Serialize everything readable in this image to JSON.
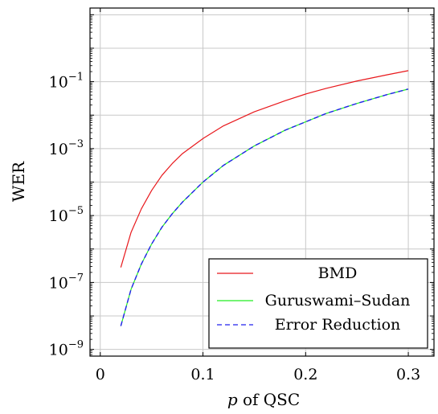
{
  "chart_data": {
    "type": "line",
    "xlabel_var": "p",
    "xlabel_rest": " of QSC",
    "ylabel": "WER",
    "xlim": [
      -0.01,
      0.325
    ],
    "ylim_log10": [
      -9.2,
      1.2
    ],
    "y_scale": "log",
    "grid": true,
    "legend_position": "bottom-right",
    "x_ticks": [
      {
        "value": 0,
        "label": "0"
      },
      {
        "value": 0.1,
        "label": "0.1"
      },
      {
        "value": 0.2,
        "label": "0.2"
      },
      {
        "value": 0.3,
        "label": "0.3"
      }
    ],
    "y_ticks": [
      {
        "exp": -1,
        "base": "10",
        "sup": "−1"
      },
      {
        "exp": -3,
        "base": "10",
        "sup": "−3"
      },
      {
        "exp": -5,
        "base": "10",
        "sup": "−5"
      },
      {
        "exp": -7,
        "base": "10",
        "sup": "−7"
      },
      {
        "exp": -9,
        "base": "10",
        "sup": "−9"
      }
    ],
    "x": [
      0.02,
      0.03,
      0.04,
      0.05,
      0.06,
      0.07,
      0.08,
      0.1,
      0.12,
      0.15,
      0.18,
      0.2,
      0.22,
      0.25,
      0.28,
      0.3
    ],
    "series": [
      {
        "name": "BMD",
        "color": "#e8181c",
        "dash": "solid",
        "log10_values": [
          -6.55,
          -5.5,
          -4.8,
          -4.25,
          -3.8,
          -3.45,
          -3.15,
          -2.7,
          -2.32,
          -1.9,
          -1.57,
          -1.37,
          -1.2,
          -0.98,
          -0.79,
          -0.67
        ]
      },
      {
        "name": "Guruswami–Sudan",
        "color": "#22ee22",
        "dash": "solid",
        "log10_values": [
          -8.3,
          -7.2,
          -6.45,
          -5.85,
          -5.35,
          -4.95,
          -4.6,
          -4.0,
          -3.5,
          -2.92,
          -2.45,
          -2.2,
          -1.95,
          -1.65,
          -1.38,
          -1.22
        ]
      },
      {
        "name": "Error Reduction",
        "color": "#2222ee",
        "dash": "dashed",
        "log10_values": [
          -8.3,
          -7.2,
          -6.45,
          -5.85,
          -5.35,
          -4.95,
          -4.6,
          -4.0,
          -3.5,
          -2.92,
          -2.45,
          -2.2,
          -1.95,
          -1.65,
          -1.38,
          -1.22
        ]
      }
    ]
  }
}
